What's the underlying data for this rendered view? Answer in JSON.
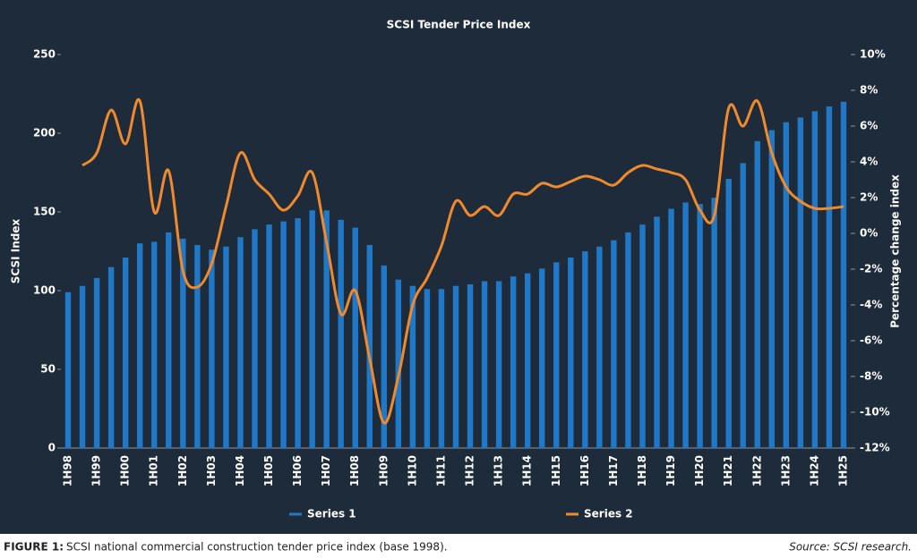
{
  "chart_data": {
    "type": "bar_line",
    "title": "SCSI Tender Price Index",
    "y_label": "SCSI Index",
    "y2_label": "Percentage change index",
    "categories": [
      "1H98",
      null,
      "1H99",
      null,
      "1H00",
      null,
      "1H01",
      null,
      "1H02",
      null,
      "1H03",
      null,
      "1H04",
      null,
      "1H05",
      null,
      "1H06",
      null,
      "1H07",
      null,
      "1H08",
      null,
      "1H09",
      null,
      "1H10",
      null,
      "1H11",
      null,
      "1H12",
      null,
      "1H13",
      null,
      "1H14",
      null,
      "1H15",
      null,
      "1H16",
      null,
      "1H17",
      null,
      "1H18",
      null,
      "1H19",
      null,
      "1H20",
      null,
      "1H21",
      null,
      "1H22",
      null,
      "1H23",
      null,
      "1H24",
      null,
      "1H25"
    ],
    "series": [
      {
        "name": "Series 1",
        "type": "bar",
        "color": "#1f78c8",
        "values": [
          99,
          103,
          108,
          115,
          121,
          130,
          131,
          137,
          133,
          129,
          126,
          128,
          134,
          139,
          142,
          144,
          146,
          151,
          151,
          145,
          140,
          129,
          116,
          107,
          103,
          101,
          101,
          103,
          104,
          106,
          106,
          109,
          111,
          114,
          118,
          121,
          125,
          128,
          132,
          137,
          142,
          147,
          152,
          156,
          155,
          159,
          171,
          181,
          195,
          202,
          207,
          210,
          214,
          217,
          220
        ]
      },
      {
        "name": "Series 2",
        "type": "line",
        "axis": "y2",
        "color": "#f08a2c",
        "values": [
          null,
          3.8,
          4.5,
          6.9,
          5.0,
          7.4,
          1.2,
          3.5,
          -2.1,
          -3.0,
          -1.7,
          1.5,
          4.5,
          3.0,
          2.2,
          1.3,
          2.1,
          3.4,
          -0.5,
          -4.5,
          -3.2,
          -7.0,
          -10.6,
          -8.0,
          -4.0,
          -2.5,
          -0.7,
          1.8,
          1.0,
          1.5,
          1.0,
          2.2,
          2.2,
          2.8,
          2.6,
          2.9,
          3.2,
          3.0,
          2.7,
          3.4,
          3.8,
          3.6,
          3.4,
          3.0,
          1.3,
          1.0,
          7.0,
          6.0,
          7.4,
          4.5,
          2.6,
          1.8,
          1.4,
          1.4,
          1.5
        ]
      }
    ],
    "ylim": [
      0,
      250
    ],
    "yticks": [
      0,
      50,
      100,
      150,
      200,
      250
    ],
    "y2lim": [
      -12,
      10
    ],
    "y2ticks": [
      {
        "value": -12,
        "label": "-12%"
      },
      {
        "value": -10,
        "label": "-10%"
      },
      {
        "value": -8,
        "label": "-8%"
      },
      {
        "value": -6,
        "label": "-6%"
      },
      {
        "value": -4,
        "label": "-4%"
      },
      {
        "value": -2,
        "label": "-2%"
      },
      {
        "value": 0,
        "label": "0%"
      },
      {
        "value": 2,
        "label": "2%"
      },
      {
        "value": 4,
        "label": "4%"
      },
      {
        "value": 6,
        "label": "6%"
      },
      {
        "value": 8,
        "label": "8%"
      },
      {
        "value": 10,
        "label": "10%"
      }
    ],
    "grid": false,
    "legend": "bottom",
    "caption_label": "FIGURE 1:",
    "caption": "SCSI national commercial construction tender price index (base 1998).",
    "source": "Source: SCSI research."
  }
}
